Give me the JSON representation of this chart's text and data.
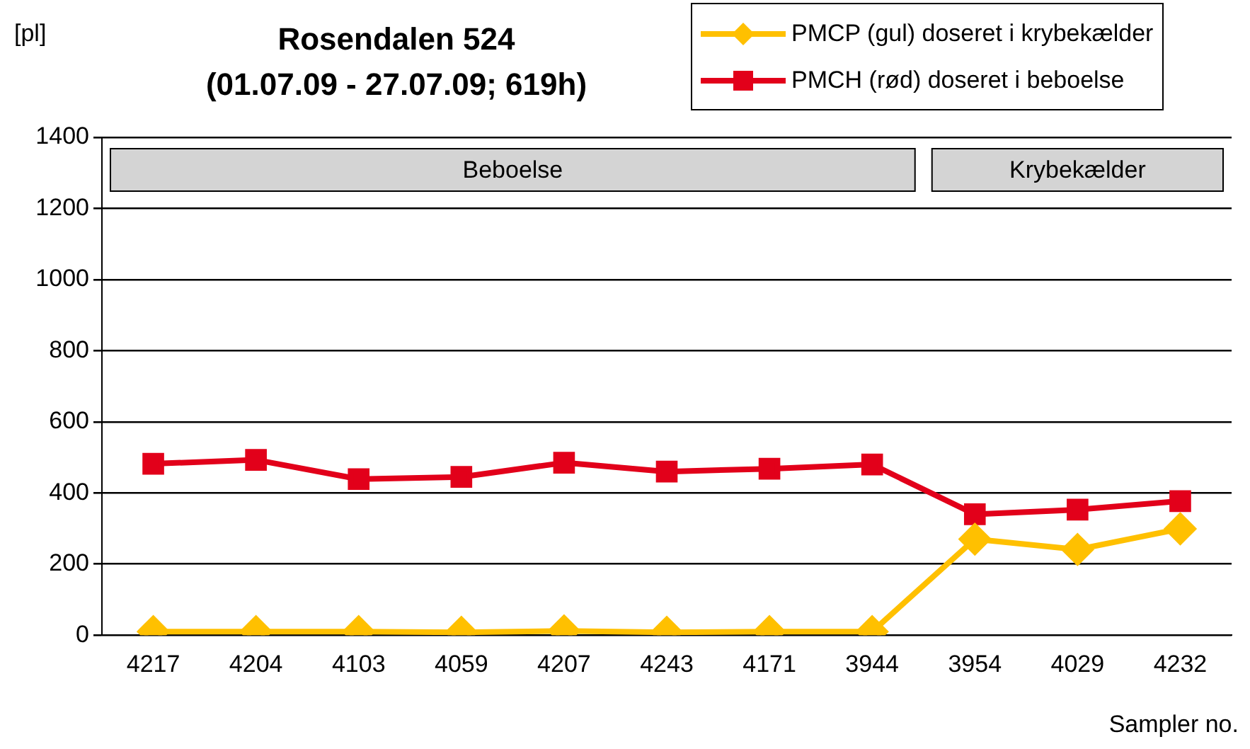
{
  "chart_data": {
    "type": "line",
    "title": "Rosendalen 524",
    "subtitle": "(01.07.09 - 27.07.09; 619h)",
    "ylabel": "[pl]",
    "xlabel": "Sampler no.",
    "categories": [
      "4217",
      "4204",
      "4103",
      "4059",
      "4207",
      "4243",
      "4171",
      "3944",
      "3954",
      "4029",
      "4232"
    ],
    "series": [
      {
        "name": "PMCP (gul) doseret i krybekælder",
        "color": "#ffc000",
        "marker": "diamond",
        "values": [
          10,
          10,
          10,
          8,
          12,
          8,
          10,
          10,
          270,
          241,
          299
        ]
      },
      {
        "name": "PMCH (rød) doseret i beboelse",
        "color": "#e2001a",
        "marker": "square",
        "values": [
          482,
          493,
          439,
          445,
          485,
          460,
          468,
          480,
          340,
          353,
          377
        ]
      }
    ],
    "bands": [
      {
        "axis": "x",
        "from": "4217",
        "to": "3944",
        "label": "Beboelse",
        "color": "#d4d4d4"
      },
      {
        "axis": "x",
        "from": "3954",
        "to": "4232",
        "label": "Krybekælder",
        "color": "#d4d4d4"
      }
    ],
    "ylim": [
      0,
      1400
    ],
    "yticks": [
      0,
      200,
      400,
      600,
      800,
      1000,
      1200,
      1400
    ],
    "grid": "y",
    "legend": "top right",
    "line_style": "solid"
  }
}
